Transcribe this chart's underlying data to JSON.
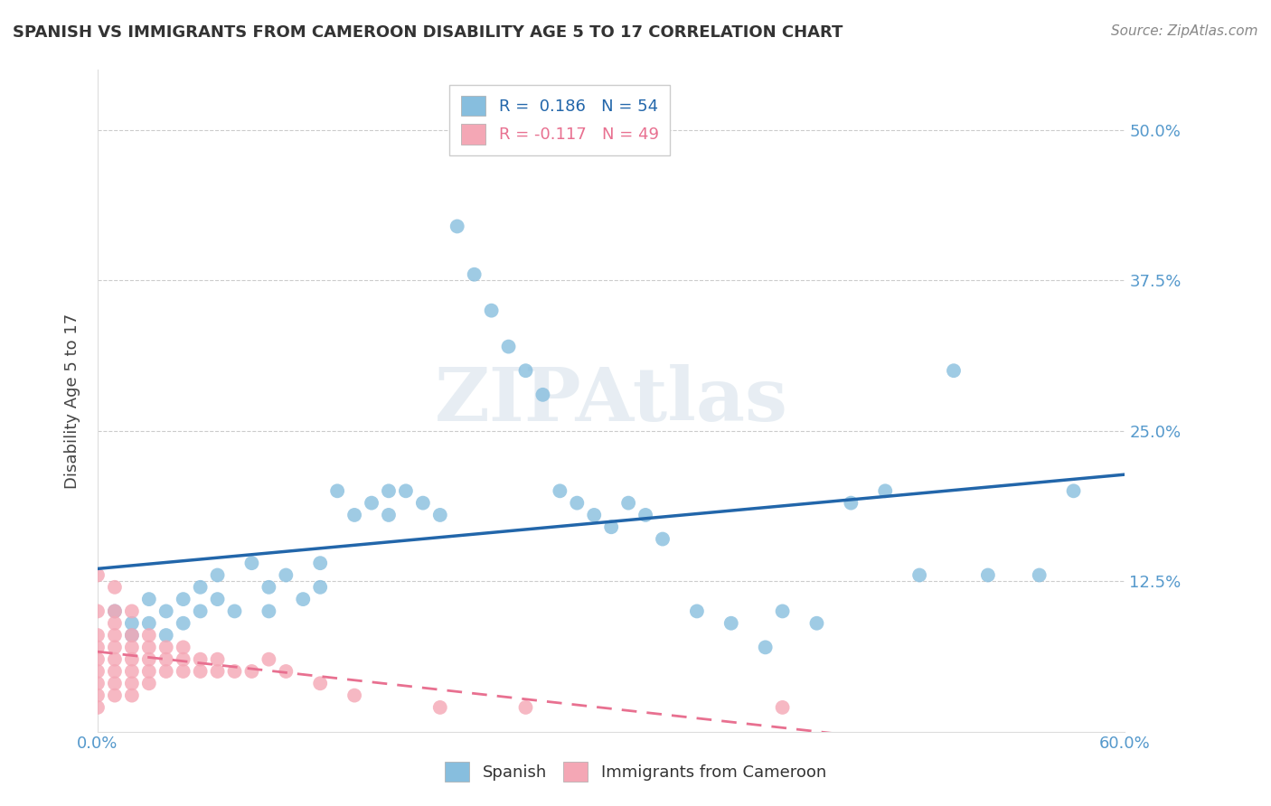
{
  "title": "SPANISH VS IMMIGRANTS FROM CAMEROON DISABILITY AGE 5 TO 17 CORRELATION CHART",
  "source": "Source: ZipAtlas.com",
  "xlabel": "",
  "ylabel": "Disability Age 5 to 17",
  "xlim": [
    0.0,
    0.6
  ],
  "ylim": [
    0.0,
    0.55
  ],
  "xtick_labels": [
    "0.0%",
    "60.0%"
  ],
  "ytick_labels": [
    "12.5%",
    "25.0%",
    "37.5%",
    "50.0%"
  ],
  "ytick_values": [
    0.125,
    0.25,
    0.375,
    0.5
  ],
  "grid_color": "#cccccc",
  "background_color": "#ffffff",
  "spanish_color": "#87BEDE",
  "cameroon_color": "#F4A7B5",
  "spanish_line_color": "#2266AA",
  "cameroon_line_color": "#E87090",
  "r_spanish": 0.186,
  "n_spanish": 54,
  "r_cameroon": -0.117,
  "n_cameroon": 49,
  "spanish_scatter": [
    [
      0.01,
      0.1
    ],
    [
      0.02,
      0.09
    ],
    [
      0.02,
      0.08
    ],
    [
      0.03,
      0.11
    ],
    [
      0.03,
      0.09
    ],
    [
      0.04,
      0.1
    ],
    [
      0.04,
      0.08
    ],
    [
      0.05,
      0.11
    ],
    [
      0.05,
      0.09
    ],
    [
      0.06,
      0.12
    ],
    [
      0.06,
      0.1
    ],
    [
      0.07,
      0.13
    ],
    [
      0.07,
      0.11
    ],
    [
      0.08,
      0.1
    ],
    [
      0.09,
      0.14
    ],
    [
      0.1,
      0.12
    ],
    [
      0.1,
      0.1
    ],
    [
      0.11,
      0.13
    ],
    [
      0.12,
      0.11
    ],
    [
      0.13,
      0.14
    ],
    [
      0.13,
      0.12
    ],
    [
      0.14,
      0.2
    ],
    [
      0.15,
      0.18
    ],
    [
      0.16,
      0.19
    ],
    [
      0.17,
      0.2
    ],
    [
      0.17,
      0.18
    ],
    [
      0.18,
      0.2
    ],
    [
      0.19,
      0.19
    ],
    [
      0.2,
      0.18
    ],
    [
      0.21,
      0.42
    ],
    [
      0.22,
      0.38
    ],
    [
      0.23,
      0.35
    ],
    [
      0.24,
      0.32
    ],
    [
      0.25,
      0.3
    ],
    [
      0.26,
      0.28
    ],
    [
      0.27,
      0.2
    ],
    [
      0.28,
      0.19
    ],
    [
      0.29,
      0.18
    ],
    [
      0.3,
      0.17
    ],
    [
      0.31,
      0.19
    ],
    [
      0.32,
      0.18
    ],
    [
      0.33,
      0.16
    ],
    [
      0.35,
      0.1
    ],
    [
      0.37,
      0.09
    ],
    [
      0.39,
      0.07
    ],
    [
      0.4,
      0.1
    ],
    [
      0.42,
      0.09
    ],
    [
      0.44,
      0.19
    ],
    [
      0.46,
      0.2
    ],
    [
      0.48,
      0.13
    ],
    [
      0.5,
      0.3
    ],
    [
      0.52,
      0.13
    ],
    [
      0.55,
      0.13
    ],
    [
      0.57,
      0.2
    ]
  ],
  "cameroon_scatter": [
    [
      0.0,
      0.13
    ],
    [
      0.0,
      0.1
    ],
    [
      0.0,
      0.08
    ],
    [
      0.0,
      0.07
    ],
    [
      0.0,
      0.06
    ],
    [
      0.0,
      0.05
    ],
    [
      0.0,
      0.04
    ],
    [
      0.0,
      0.03
    ],
    [
      0.0,
      0.02
    ],
    [
      0.01,
      0.12
    ],
    [
      0.01,
      0.1
    ],
    [
      0.01,
      0.09
    ],
    [
      0.01,
      0.08
    ],
    [
      0.01,
      0.07
    ],
    [
      0.01,
      0.06
    ],
    [
      0.01,
      0.05
    ],
    [
      0.01,
      0.04
    ],
    [
      0.01,
      0.03
    ],
    [
      0.02,
      0.1
    ],
    [
      0.02,
      0.08
    ],
    [
      0.02,
      0.07
    ],
    [
      0.02,
      0.06
    ],
    [
      0.02,
      0.05
    ],
    [
      0.02,
      0.04
    ],
    [
      0.02,
      0.03
    ],
    [
      0.03,
      0.08
    ],
    [
      0.03,
      0.07
    ],
    [
      0.03,
      0.06
    ],
    [
      0.03,
      0.05
    ],
    [
      0.03,
      0.04
    ],
    [
      0.04,
      0.07
    ],
    [
      0.04,
      0.06
    ],
    [
      0.04,
      0.05
    ],
    [
      0.05,
      0.07
    ],
    [
      0.05,
      0.06
    ],
    [
      0.05,
      0.05
    ],
    [
      0.06,
      0.06
    ],
    [
      0.06,
      0.05
    ],
    [
      0.07,
      0.06
    ],
    [
      0.07,
      0.05
    ],
    [
      0.08,
      0.05
    ],
    [
      0.09,
      0.05
    ],
    [
      0.1,
      0.06
    ],
    [
      0.11,
      0.05
    ],
    [
      0.13,
      0.04
    ],
    [
      0.15,
      0.03
    ],
    [
      0.2,
      0.02
    ],
    [
      0.25,
      0.02
    ],
    [
      0.4,
      0.02
    ]
  ],
  "watermark": "ZIPAtlas",
  "legend_box_color_spanish": "#87BEDE",
  "legend_box_color_cameroon": "#F4A7B5"
}
